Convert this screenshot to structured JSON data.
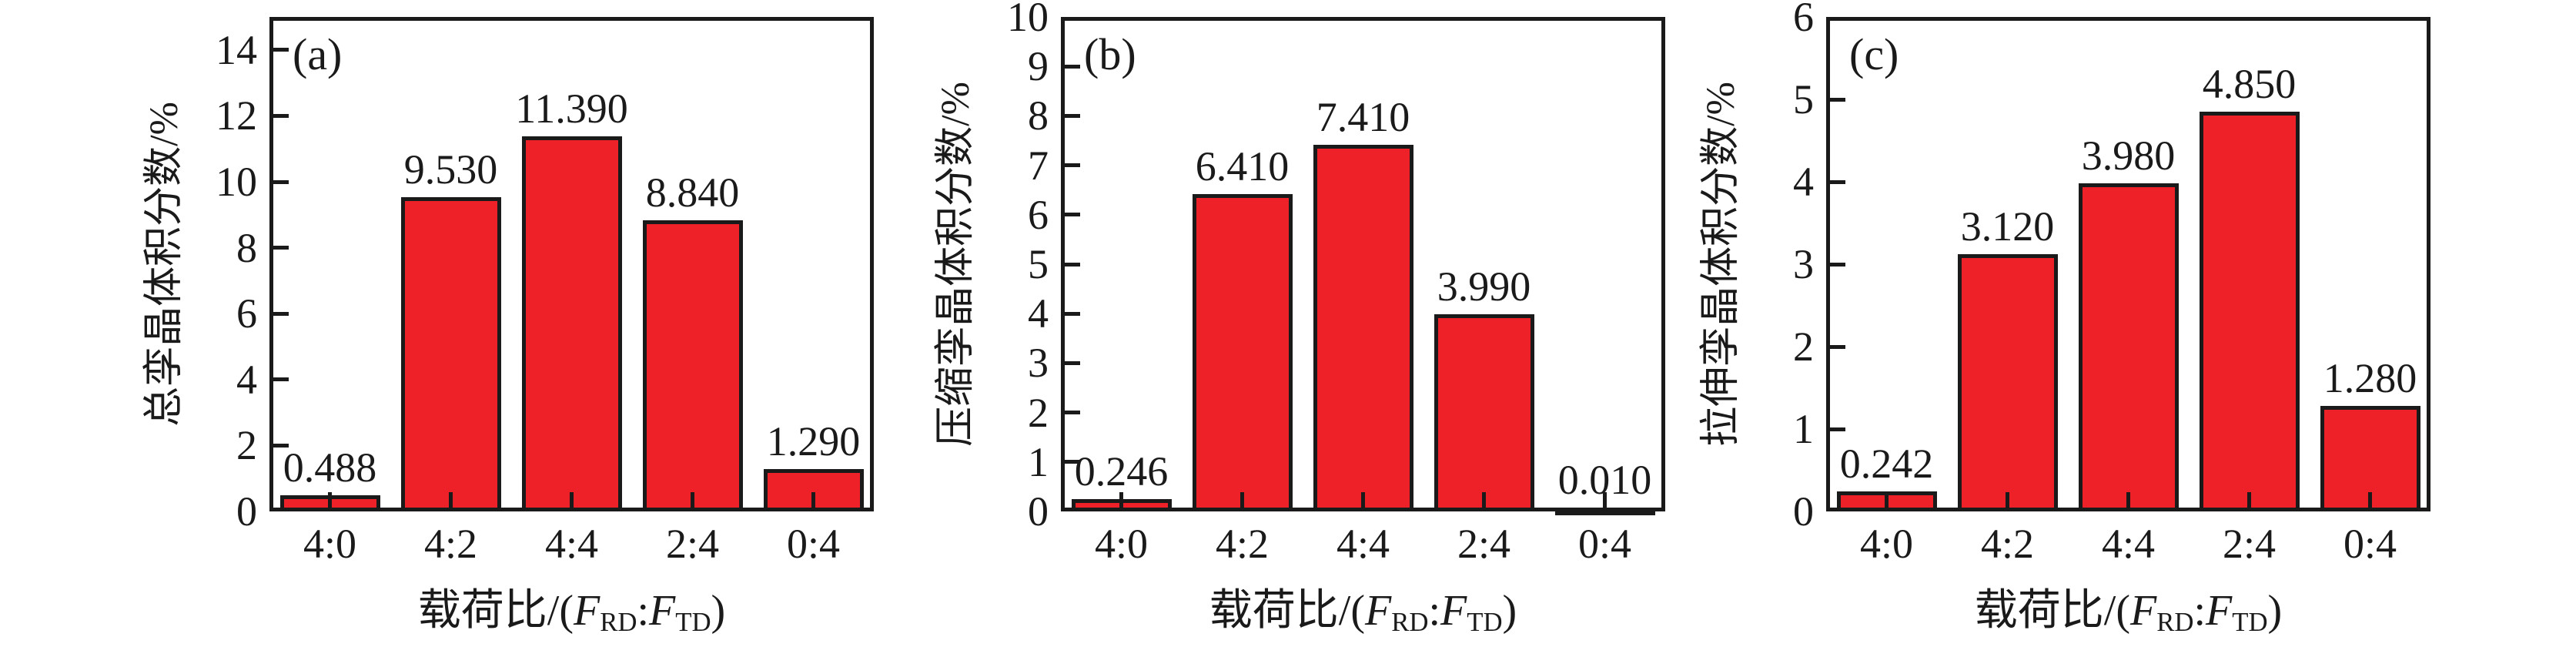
{
  "figure": {
    "background": "#ffffff",
    "bar_color": "#EE2128",
    "bar_border_color": "#1a1a1a",
    "axis_color": "#1a1a1a",
    "text_color": "#1a1a1a"
  },
  "chart_data": [
    {
      "type": "bar",
      "panel_label": "(a)",
      "ylabel": "总孪晶体积分数/%",
      "xlabel_parts": [
        {
          "text": "载荷比/(",
          "style": "normal"
        },
        {
          "text": "F",
          "style": "italic"
        },
        {
          "text": "RD",
          "style": "subscript"
        },
        {
          "text": ":",
          "style": "normal"
        },
        {
          "text": "F",
          "style": "italic"
        },
        {
          "text": "TD",
          "style": "subscript"
        },
        {
          "text": ")",
          "style": "normal"
        }
      ],
      "categories": [
        "4:0",
        "4:2",
        "4:4",
        "2:4",
        "0:4"
      ],
      "values": [
        0.488,
        9.53,
        11.39,
        8.84,
        1.29
      ],
      "value_labels": [
        "0.488",
        "9.530",
        "11.390",
        "8.840",
        "1.290"
      ],
      "ylim": [
        0,
        15
      ],
      "yticks": [
        0,
        2,
        4,
        6,
        8,
        10,
        12,
        14
      ],
      "grid": false,
      "legend": "none"
    },
    {
      "type": "bar",
      "panel_label": "(b)",
      "ylabel": "压缩孪晶体积分数/%",
      "xlabel_parts": [
        {
          "text": "载荷比/(",
          "style": "normal"
        },
        {
          "text": "F",
          "style": "italic"
        },
        {
          "text": "RD",
          "style": "subscript"
        },
        {
          "text": ":",
          "style": "normal"
        },
        {
          "text": "F",
          "style": "italic"
        },
        {
          "text": "TD",
          "style": "subscript"
        },
        {
          "text": ")",
          "style": "normal"
        }
      ],
      "categories": [
        "4:0",
        "4:2",
        "4:4",
        "2:4",
        "0:4"
      ],
      "values": [
        0.246,
        6.41,
        7.41,
        3.99,
        0.01
      ],
      "value_labels": [
        "0.246",
        "6.410",
        "7.410",
        "3.990",
        "0.010"
      ],
      "ylim": [
        0,
        10
      ],
      "yticks": [
        0,
        1,
        2,
        3,
        4,
        5,
        6,
        7,
        8,
        9,
        10
      ],
      "grid": false,
      "legend": "none"
    },
    {
      "type": "bar",
      "panel_label": "(c)",
      "ylabel": "拉伸孪晶体积分数/%",
      "xlabel_parts": [
        {
          "text": "载荷比/(",
          "style": "normal"
        },
        {
          "text": "F",
          "style": "italic"
        },
        {
          "text": "RD",
          "style": "subscript"
        },
        {
          "text": ":",
          "style": "normal"
        },
        {
          "text": "F",
          "style": "italic"
        },
        {
          "text": "TD",
          "style": "subscript"
        },
        {
          "text": ")",
          "style": "normal"
        }
      ],
      "categories": [
        "4:0",
        "4:2",
        "4:4",
        "2:4",
        "0:4"
      ],
      "values": [
        0.242,
        3.12,
        3.98,
        4.85,
        1.28
      ],
      "value_labels": [
        "0.242",
        "3.120",
        "3.980",
        "4.850",
        "1.280"
      ],
      "ylim": [
        0,
        6
      ],
      "yticks": [
        0,
        1,
        2,
        3,
        4,
        5,
        6
      ],
      "grid": false,
      "legend": "none"
    }
  ]
}
